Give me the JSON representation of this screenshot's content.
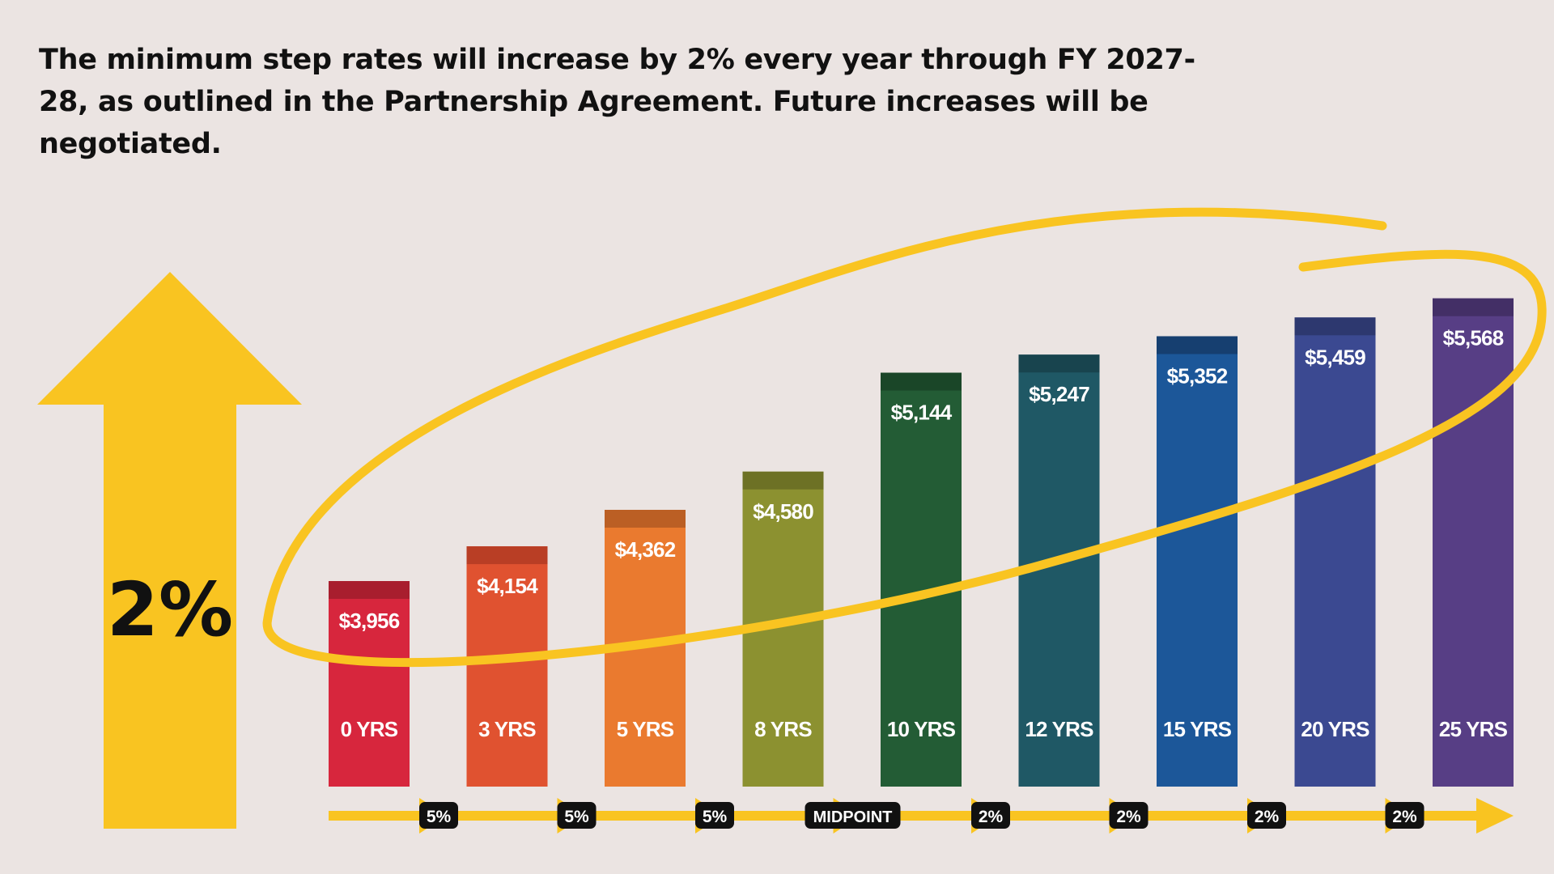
{
  "headline": "The minimum step rates will increase by 2% every year through FY 2027-28, as outlined in the Partnership Agreement. Future increases will be negotiated.",
  "big_label": "2%",
  "colors": {
    "background": "#ebe4e2",
    "accent": "#f9c421",
    "pill": "#111111",
    "bars": [
      "#d7263d",
      "#e05230",
      "#ea7a2f",
      "#8c9130",
      "#235c35",
      "#1f5865",
      "#1c5799",
      "#3b4991",
      "#573e85"
    ],
    "caps": [
      "#a81e2e",
      "#b93e25",
      "#bb5f24",
      "#6d7125",
      "#1a4628",
      "#18444e",
      "#163f70",
      "#2d386f",
      "#432f66"
    ]
  },
  "chart_data": {
    "type": "bar",
    "title": "",
    "xlabel": "",
    "ylabel": "",
    "categories": [
      "0 YRS",
      "3 YRS",
      "5 YRS",
      "8 YRS",
      "10 YRS",
      "12 YRS",
      "15 YRS",
      "20 YRS",
      "25 YRS"
    ],
    "values": [
      3956,
      4154,
      4362,
      4580,
      5144,
      5247,
      5352,
      5459,
      5568
    ],
    "value_labels": [
      "$3,956",
      "$4,154",
      "$4,362",
      "$4,580",
      "$5,144",
      "$5,247",
      "$5,352",
      "$5,459",
      "$5,568"
    ],
    "step_increases": [
      "5%",
      "5%",
      "5%",
      "MIDPOINT",
      "2%",
      "2%",
      "2%",
      "2%"
    ]
  }
}
